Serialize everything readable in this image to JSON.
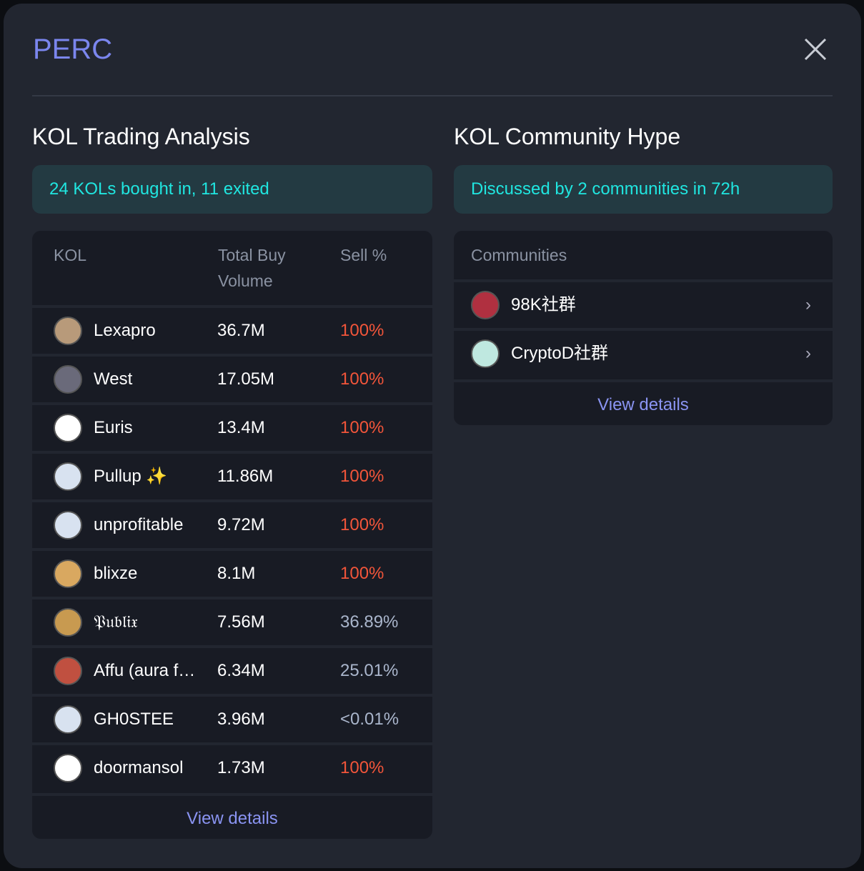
{
  "header": {
    "title": "PERC"
  },
  "left": {
    "heading": "KOL Trading Analysis",
    "summary": "24 KOLs bought in, 11 exited",
    "columns": [
      "KOL",
      "Total Buy Volume",
      "Sell %"
    ],
    "rows": [
      {
        "name": "Lexapro",
        "volume": "36.7M",
        "sell": "100%",
        "avatar": "#b89a7a"
      },
      {
        "name": "West",
        "volume": "17.05M",
        "sell": "100%",
        "avatar": "#6a6a7a"
      },
      {
        "name": "Euris",
        "volume": "13.4M",
        "sell": "100%",
        "avatar": "#ffffff"
      },
      {
        "name": "Pullup ✨",
        "volume": "11.86M",
        "sell": "100%",
        "avatar": "#d8e2f0"
      },
      {
        "name": "unprofitable",
        "volume": "9.72M",
        "sell": "100%",
        "avatar": "#d8e2f0"
      },
      {
        "name": "blixze",
        "volume": "8.1M",
        "sell": "100%",
        "avatar": "#d9a860"
      },
      {
        "name": "𝔓𝔲𝔟𝔩𝔦𝔵",
        "volume": "7.56M",
        "sell": "36.89%",
        "avatar": "#c89a50"
      },
      {
        "name": "Affu (aura f…",
        "volume": "6.34M",
        "sell": "25.01%",
        "avatar": "#c05040"
      },
      {
        "name": "GH0STEE",
        "volume": "3.96M",
        "sell": "<0.01%",
        "avatar": "#d8e2f0"
      },
      {
        "name": "doormansol",
        "volume": "1.73M",
        "sell": "100%",
        "avatar": "#ffffff"
      }
    ],
    "view_details": "View details"
  },
  "right": {
    "heading": "KOL Community Hype",
    "summary": "Discussed by 2 communities in 72h",
    "column": "Communities",
    "rows": [
      {
        "name": "98K社群",
        "avatar": "#b03040"
      },
      {
        "name": "CryptoD社群",
        "avatar": "#bfe8e0"
      }
    ],
    "view_details": "View details"
  },
  "colors": {
    "accent": "#7b86ee",
    "cyan": "#20e6e0",
    "red": "#f2553a"
  }
}
